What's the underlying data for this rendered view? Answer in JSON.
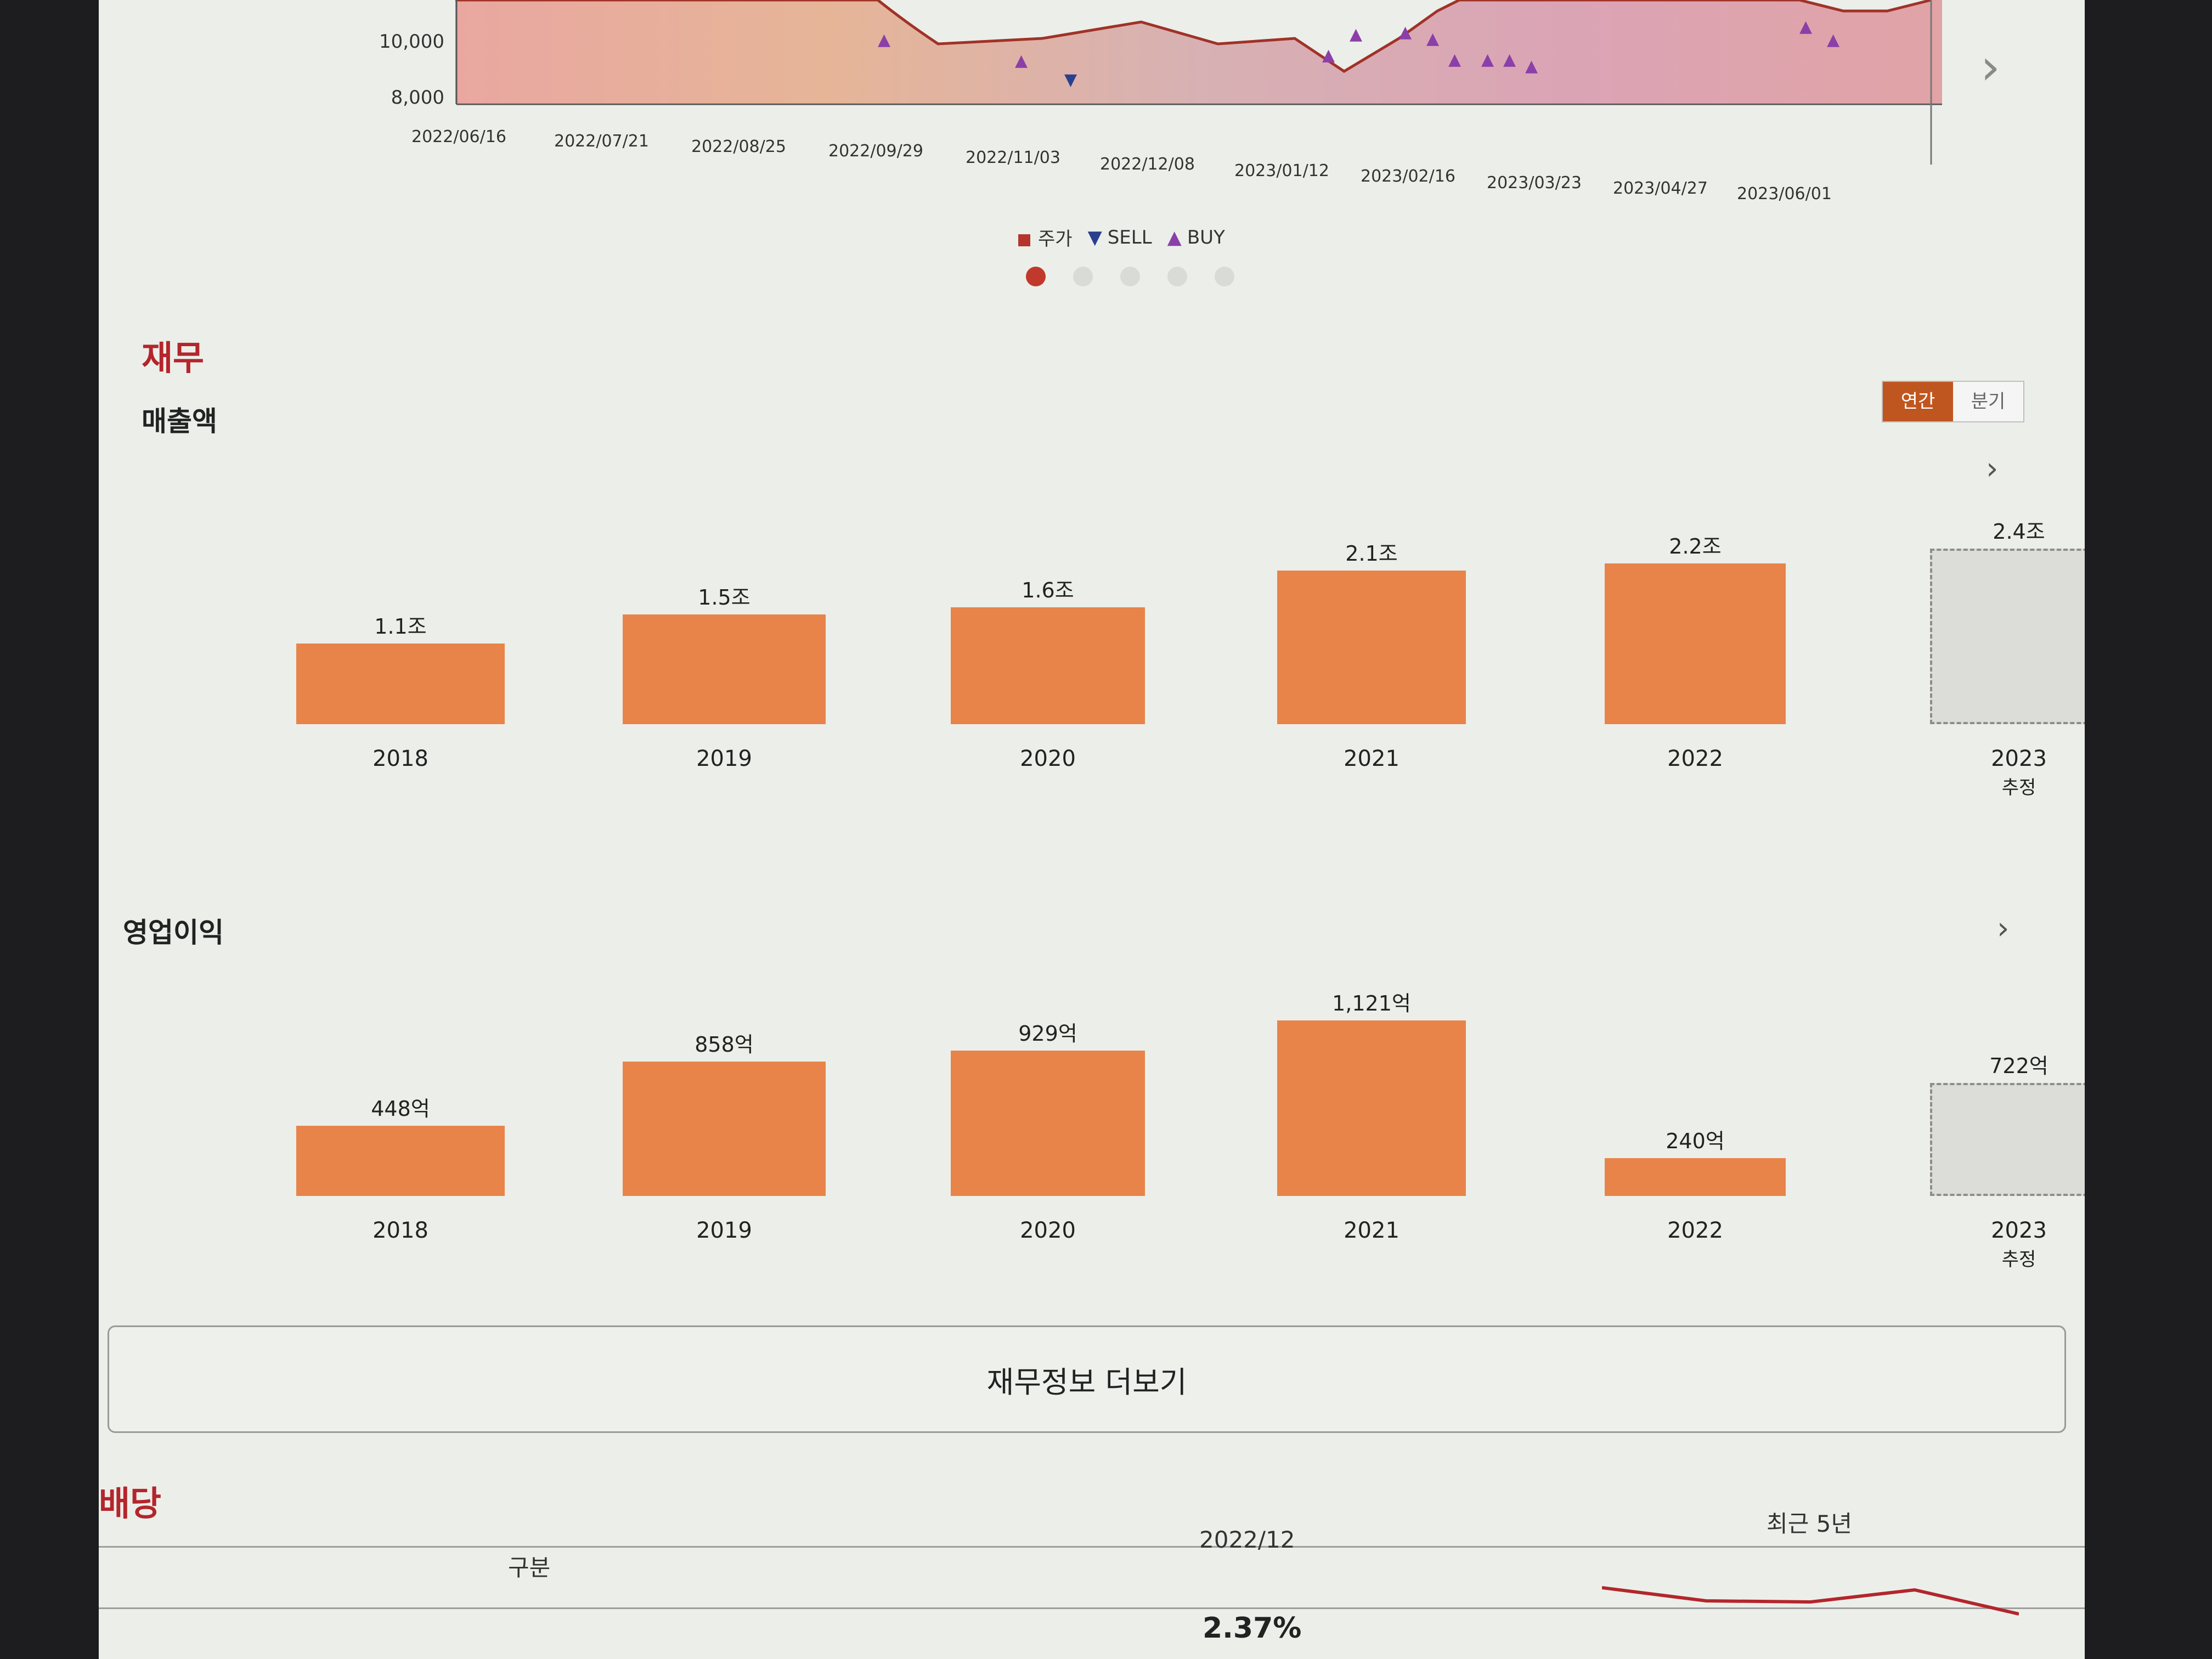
{
  "stock_chart": {
    "y_ticks": [
      "10,000",
      "8,000"
    ],
    "x_ticks": [
      "2022/06/16",
      "2022/07/21",
      "2022/08/25",
      "2022/09/29",
      "2022/11/03",
      "2022/12/08",
      "2023/01/12",
      "2023/02/16",
      "2023/03/23",
      "2023/04/27",
      "2023/06/01"
    ],
    "legend": [
      {
        "label": "주가",
        "symbol": "■",
        "color": "#b5352e"
      },
      {
        "label": "SELL",
        "symbol": "▼",
        "color": "#2b3f8f"
      },
      {
        "label": "BUY",
        "symbol": "▲",
        "color": "#8b3fa8"
      }
    ],
    "pager_active": 0,
    "pager_count": 5
  },
  "finance": {
    "section_title": "재무",
    "toggle": {
      "annual": "연간",
      "quarter": "분기",
      "selected": "annual"
    },
    "more_button": "재무정보 더보기"
  },
  "chart_data": [
    {
      "type": "bar",
      "title": "매출액",
      "categories": [
        "2018",
        "2019",
        "2020",
        "2021",
        "2022",
        "2023"
      ],
      "values": [
        1.1,
        1.5,
        1.6,
        2.1,
        2.2,
        2.4
      ],
      "value_labels": [
        "1.1조",
        "1.5조",
        "1.6조",
        "2.1조",
        "2.2조",
        "2.4조"
      ],
      "estimate_note": "추정",
      "estimate_index": 5,
      "bar_color": "#e8844a"
    },
    {
      "type": "bar",
      "title": "영업이익",
      "categories": [
        "2018",
        "2019",
        "2020",
        "2021",
        "2022",
        "2023"
      ],
      "values": [
        448,
        858,
        929,
        1121,
        240,
        722
      ],
      "value_labels": [
        "448억",
        "858억",
        "929억",
        "1,121억",
        "240억",
        "722억"
      ],
      "estimate_note": "추정",
      "estimate_index": 5,
      "bar_color": "#e8844a"
    }
  ],
  "dividend": {
    "section_title": "배당",
    "col_category": "구분",
    "col_period": "2022/12",
    "col_recent": "최근 5년",
    "row_value": "2.37%"
  }
}
